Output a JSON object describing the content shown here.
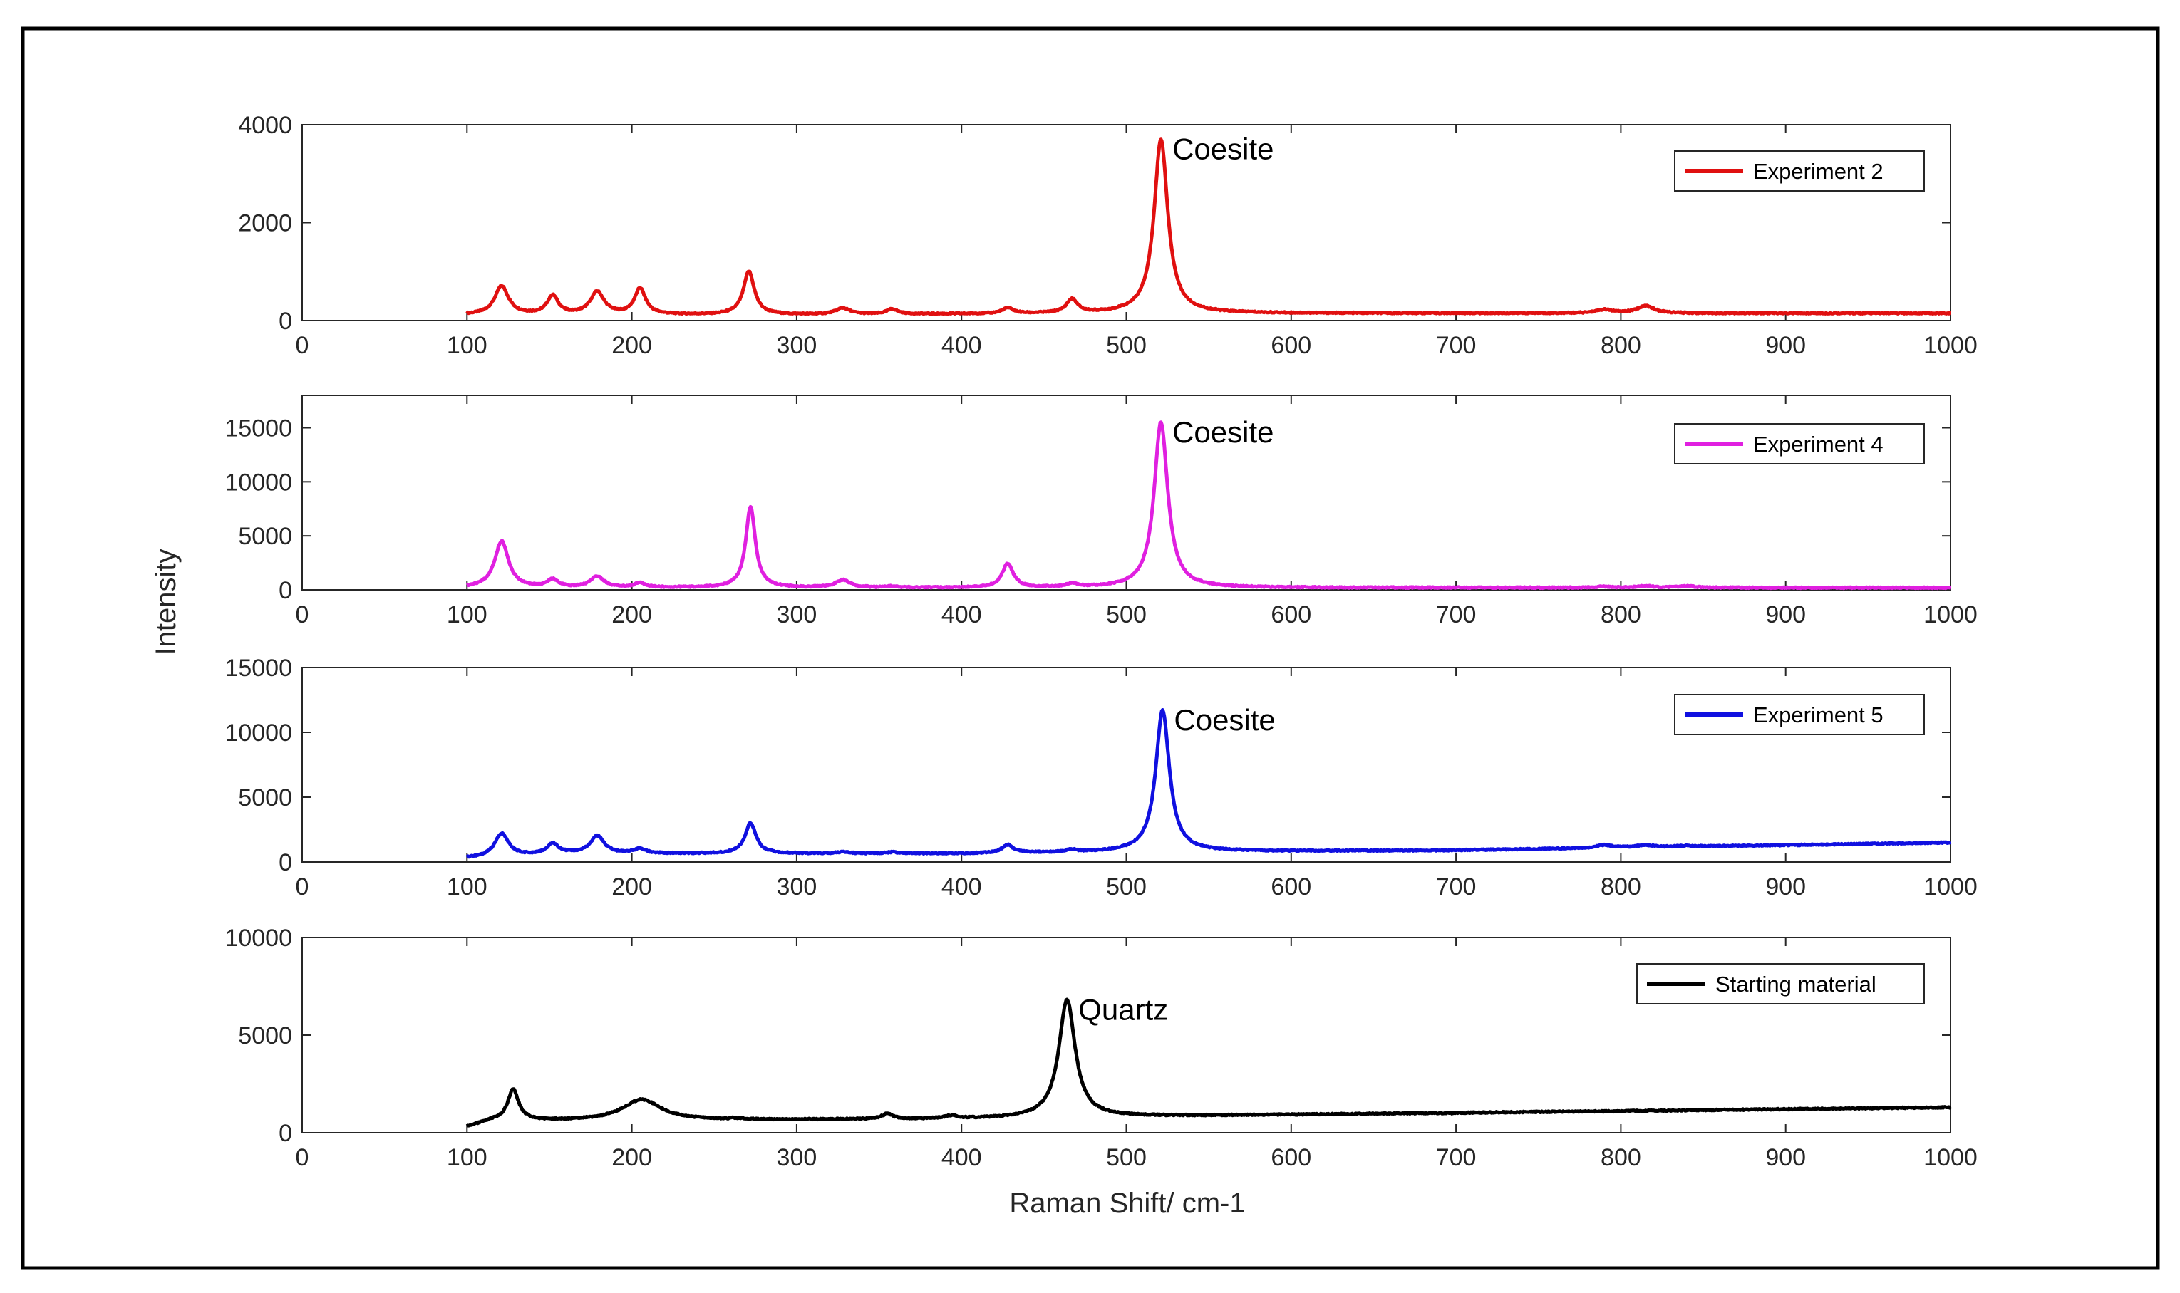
{
  "chart_data": {
    "type": "line",
    "xlabel": "Raman Shift/ cm-1",
    "ylabel": "Intensity",
    "xlim": [
      0,
      1000
    ],
    "x_ticks": [
      0,
      100,
      200,
      300,
      400,
      500,
      600,
      700,
      800,
      900,
      1000
    ],
    "x_range_data": [
      100,
      1000
    ],
    "panels": [
      {
        "legend": "Experiment 2",
        "color": "#e01010",
        "ylim": [
          0,
          4000
        ],
        "y_ticks": [
          0,
          2000,
          4000
        ],
        "annotation": {
          "text": "Coesite",
          "x": 521,
          "y": 3700
        },
        "baseline": [
          [
            100,
            120
          ],
          [
            300,
            120
          ],
          [
            520,
            150
          ],
          [
            1000,
            150
          ]
        ],
        "peaks": [
          {
            "x": 121,
            "y": 700,
            "w": 5
          },
          {
            "x": 152,
            "y": 500,
            "w": 4
          },
          {
            "x": 179,
            "y": 580,
            "w": 5
          },
          {
            "x": 205,
            "y": 650,
            "w": 4
          },
          {
            "x": 271,
            "y": 1000,
            "w": 4
          },
          {
            "x": 328,
            "y": 250,
            "w": 5
          },
          {
            "x": 358,
            "y": 230,
            "w": 4
          },
          {
            "x": 428,
            "y": 250,
            "w": 4
          },
          {
            "x": 467,
            "y": 420,
            "w": 4
          },
          {
            "x": 521,
            "y": 3700,
            "w": 5
          },
          {
            "x": 790,
            "y": 220,
            "w": 6
          },
          {
            "x": 815,
            "y": 300,
            "w": 6
          }
        ]
      },
      {
        "legend": "Experiment 4",
        "color": "#e020e0",
        "ylim": [
          0,
          18000
        ],
        "y_ticks": [
          0,
          5000,
          10000,
          15000
        ],
        "annotation": {
          "text": "Coesite",
          "x": 521,
          "y": 15500
        },
        "baseline": [
          [
            100,
            200
          ],
          [
            1000,
            200
          ]
        ],
        "peaks": [
          {
            "x": 121,
            "y": 4500,
            "w": 5
          },
          {
            "x": 152,
            "y": 900,
            "w": 4
          },
          {
            "x": 179,
            "y": 1200,
            "w": 5
          },
          {
            "x": 205,
            "y": 600,
            "w": 4
          },
          {
            "x": 272,
            "y": 7700,
            "w": 3.5
          },
          {
            "x": 328,
            "y": 900,
            "w": 5
          },
          {
            "x": 358,
            "y": 300,
            "w": 4
          },
          {
            "x": 428,
            "y": 2400,
            "w": 4
          },
          {
            "x": 467,
            "y": 500,
            "w": 4
          },
          {
            "x": 521,
            "y": 15500,
            "w": 5
          },
          {
            "x": 790,
            "y": 300,
            "w": 6
          },
          {
            "x": 815,
            "y": 350,
            "w": 6
          },
          {
            "x": 840,
            "y": 350,
            "w": 6
          }
        ]
      },
      {
        "legend": "Experiment 5",
        "color": "#1010e0",
        "ylim": [
          0,
          15000
        ],
        "y_ticks": [
          0,
          5000,
          10000,
          15000
        ],
        "annotation": {
          "text": "Coesite",
          "x": 522,
          "y": 11700
        },
        "baseline": [
          [
            100,
            300
          ],
          [
            160,
            650
          ],
          [
            400,
            650
          ],
          [
            520,
            800
          ],
          [
            700,
            900
          ],
          [
            1000,
            1500
          ]
        ],
        "peaks": [
          {
            "x": 121,
            "y": 2200,
            "w": 5
          },
          {
            "x": 152,
            "y": 1400,
            "w": 4
          },
          {
            "x": 179,
            "y": 2000,
            "w": 5
          },
          {
            "x": 205,
            "y": 1000,
            "w": 4
          },
          {
            "x": 272,
            "y": 3000,
            "w": 4
          },
          {
            "x": 328,
            "y": 750,
            "w": 5
          },
          {
            "x": 358,
            "y": 750,
            "w": 4
          },
          {
            "x": 428,
            "y": 1300,
            "w": 4
          },
          {
            "x": 467,
            "y": 900,
            "w": 4
          },
          {
            "x": 522,
            "y": 11700,
            "w": 5
          },
          {
            "x": 790,
            "y": 1300,
            "w": 6
          },
          {
            "x": 815,
            "y": 1300,
            "w": 6
          },
          {
            "x": 840,
            "y": 1250,
            "w": 6
          }
        ]
      },
      {
        "legend": "Starting material",
        "color": "#000000",
        "ylim": [
          0,
          10000
        ],
        "y_ticks": [
          0,
          5000,
          10000
        ],
        "annotation": {
          "text": "Quartz",
          "x": 464,
          "y": 6800
        },
        "baseline": [
          [
            100,
            300
          ],
          [
            115,
            600
          ],
          [
            400,
            700
          ],
          [
            470,
            800
          ],
          [
            1000,
            1300
          ]
        ],
        "peaks": [
          {
            "x": 128,
            "y": 2200,
            "w": 4
          },
          {
            "x": 206,
            "y": 1700,
            "w": 14
          },
          {
            "x": 263,
            "y": 700,
            "w": 4
          },
          {
            "x": 355,
            "y": 950,
            "w": 4
          },
          {
            "x": 394,
            "y": 850,
            "w": 5
          },
          {
            "x": 464,
            "y": 6800,
            "w": 6
          },
          {
            "x": 697,
            "y": 1000,
            "w": 6
          },
          {
            "x": 800,
            "y": 1100,
            "w": 8
          }
        ]
      }
    ]
  }
}
